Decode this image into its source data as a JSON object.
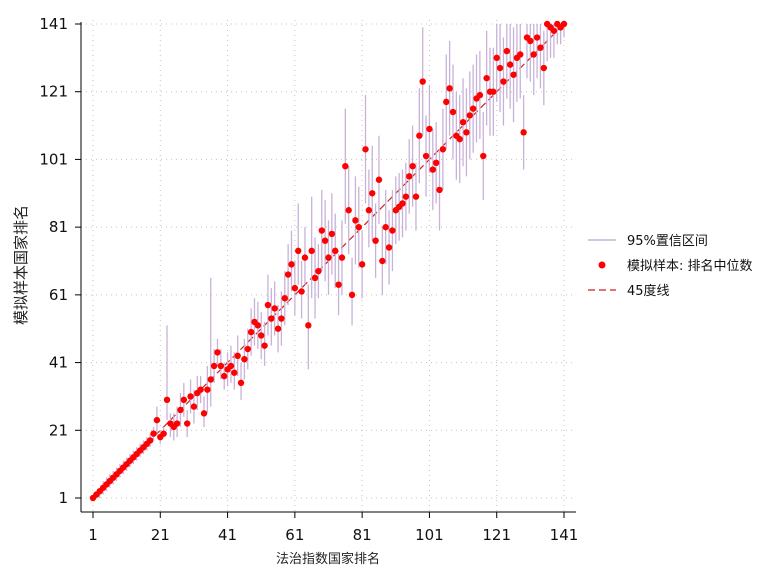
{
  "chart_data": {
    "type": "scatter",
    "xlabel": "法治指数国家排名",
    "ylabel": "模拟样本国家排名",
    "xlim": [
      1,
      141
    ],
    "ylim": [
      1,
      141
    ],
    "x_ticks": [
      1,
      21,
      41,
      61,
      81,
      101,
      121,
      141
    ],
    "y_ticks": [
      1,
      21,
      41,
      61,
      81,
      101,
      121,
      141
    ],
    "grid": "dotted",
    "legend_position": "right",
    "legend": [
      {
        "label": "95%置信区间",
        "kind": "line",
        "color": "#c8b2d8"
      },
      {
        "label": "模拟样本: 排名中位数",
        "kind": "point",
        "color": "#ff0000"
      },
      {
        "label": "45度线",
        "kind": "dashed-line",
        "color": "#cc2222"
      }
    ],
    "reference_line": {
      "label": "45度线",
      "from": [
        1,
        1
      ],
      "to": [
        141,
        141
      ],
      "color": "#cc2222"
    },
    "series": [
      {
        "name": "模拟样本: 排名中位数",
        "color": "#ff0000",
        "x": [
          1,
          2,
          3,
          4,
          5,
          6,
          7,
          8,
          9,
          10,
          11,
          12,
          13,
          14,
          15,
          16,
          17,
          18,
          19,
          20,
          21,
          22,
          23,
          24,
          25,
          26,
          27,
          28,
          29,
          30,
          31,
          32,
          33,
          34,
          35,
          36,
          37,
          38,
          39,
          40,
          41,
          42,
          43,
          44,
          45,
          46,
          47,
          48,
          49,
          50,
          51,
          52,
          53,
          54,
          55,
          56,
          57,
          58,
          59,
          60,
          61,
          62,
          63,
          64,
          65,
          66,
          67,
          68,
          69,
          70,
          71,
          72,
          73,
          74,
          75,
          76,
          77,
          78,
          79,
          80,
          81,
          82,
          83,
          84,
          85,
          86,
          87,
          88,
          89,
          90,
          91,
          92,
          93,
          94,
          95,
          96,
          97,
          98,
          99,
          100,
          101,
          102,
          103,
          104,
          105,
          106,
          107,
          108,
          109,
          110,
          111,
          112,
          113,
          114,
          115,
          116,
          117,
          118,
          119,
          120,
          121,
          122,
          123,
          124,
          125,
          126,
          127,
          128,
          129,
          130,
          131,
          132,
          133,
          134,
          135,
          136,
          137,
          138,
          139,
          140,
          141
        ],
        "y": [
          1,
          2,
          3,
          4,
          5,
          6,
          7,
          8,
          9,
          10,
          11,
          12,
          13,
          14,
          15,
          16,
          17,
          18,
          20,
          24,
          19,
          20,
          30,
          23,
          22,
          23,
          27,
          30,
          23,
          31,
          28,
          32,
          33,
          26,
          33,
          36,
          40,
          44,
          40,
          37,
          39,
          40,
          38,
          43,
          35,
          42,
          45,
          50,
          53,
          52,
          49,
          46,
          58,
          54,
          57,
          51,
          54,
          60,
          67,
          70,
          63,
          74,
          62,
          72,
          52,
          74,
          66,
          68,
          80,
          77,
          72,
          79,
          74,
          64,
          72,
          99,
          86,
          61,
          83,
          81,
          70,
          104,
          86,
          91,
          77,
          95,
          71,
          81,
          75,
          80,
          86,
          87,
          88,
          90,
          96,
          99,
          90,
          108,
          124,
          102,
          110,
          98,
          100,
          92,
          104,
          118,
          122,
          115,
          108,
          107,
          112,
          109,
          114,
          116,
          119,
          120,
          102,
          125,
          121,
          121,
          131,
          128,
          124,
          133,
          129,
          126,
          131,
          132,
          109,
          137,
          136,
          132,
          137,
          134,
          128,
          141,
          140,
          139,
          141,
          140,
          141
        ],
        "ci_low": [
          1,
          1,
          1,
          2,
          3,
          4,
          5,
          6,
          7,
          8,
          9,
          10,
          11,
          12,
          13,
          14,
          15,
          16,
          18,
          20,
          17,
          19,
          24,
          19,
          18,
          19,
          22,
          25,
          19,
          26,
          23,
          27,
          29,
          22,
          26,
          28,
          35,
          40,
          36,
          33,
          34,
          35,
          33,
          37,
          30,
          36,
          39,
          43,
          46,
          45,
          42,
          40,
          49,
          46,
          49,
          44,
          46,
          52,
          58,
          62,
          55,
          64,
          54,
          64,
          39,
          60,
          54,
          60,
          68,
          65,
          61,
          67,
          63,
          55,
          61,
          82,
          73,
          52,
          70,
          69,
          60,
          88,
          75,
          77,
          66,
          82,
          61,
          70,
          64,
          68,
          76,
          77,
          78,
          80,
          85,
          87,
          80,
          94,
          108,
          90,
          97,
          86,
          88,
          80,
          92,
          104,
          108,
          101,
          95,
          94,
          99,
          96,
          101,
          103,
          106,
          107,
          89,
          111,
          108,
          108,
          118,
          115,
          111,
          119,
          116,
          112,
          118,
          119,
          98,
          125,
          124,
          120,
          125,
          122,
          117,
          130,
          131,
          131,
          135,
          135,
          137
        ],
        "ci_high": [
          1,
          3,
          4,
          6,
          7,
          8,
          9,
          10,
          11,
          12,
          13,
          14,
          15,
          16,
          17,
          18,
          19,
          20,
          22,
          28,
          21,
          22,
          52,
          26,
          26,
          28,
          32,
          35,
          27,
          36,
          33,
          37,
          37,
          31,
          40,
          66,
          45,
          48,
          45,
          41,
          44,
          46,
          44,
          49,
          41,
          48,
          51,
          57,
          60,
          59,
          56,
          53,
          67,
          63,
          65,
          58,
          62,
          68,
          76,
          80,
          71,
          88,
          71,
          81,
          64,
          90,
          78,
          76,
          92,
          89,
          83,
          91,
          85,
          73,
          83,
          116,
          99,
          72,
          96,
          93,
          80,
          120,
          98,
          105,
          88,
          108,
          81,
          92,
          86,
          92,
          96,
          97,
          98,
          100,
          107,
          111,
          100,
          122,
          140,
          114,
          123,
          110,
          112,
          104,
          116,
          132,
          136,
          129,
          121,
          120,
          125,
          122,
          127,
          129,
          132,
          133,
          115,
          139,
          134,
          134,
          141,
          141,
          137,
          141,
          141,
          140,
          141,
          141,
          120,
          141,
          141,
          141,
          141,
          141,
          139,
          141,
          141,
          141,
          141,
          141,
          141
        ]
      }
    ]
  }
}
